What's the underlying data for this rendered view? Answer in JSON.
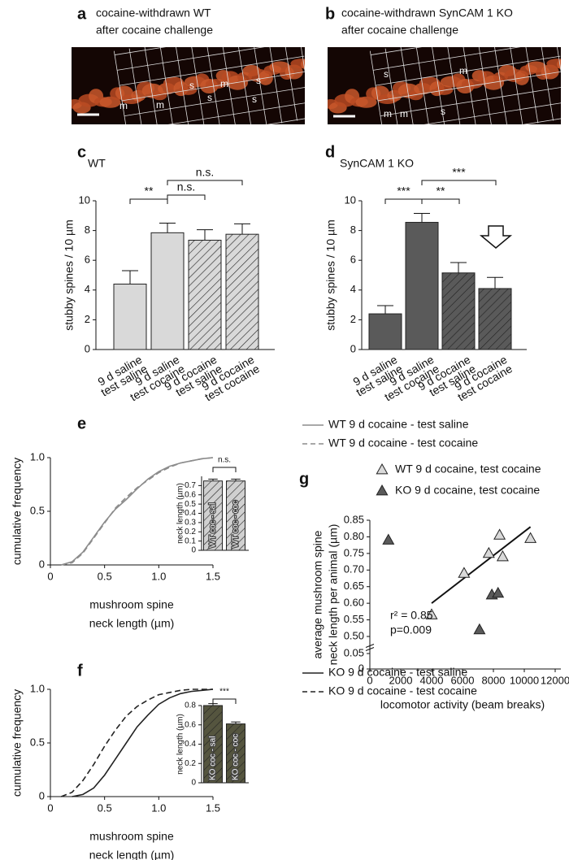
{
  "images": [
    {
      "panel": "a",
      "title": [
        "cocaine-withdrawn WT",
        "after cocaine challenge"
      ],
      "labels": [
        "s",
        "m",
        "s",
        "s",
        "s",
        "m",
        "m"
      ]
    },
    {
      "panel": "b",
      "title": [
        "cocaine-withdrawn SynCAM 1 KO",
        "after cocaine challenge"
      ],
      "labels": [
        "s",
        "m",
        "m",
        "m",
        "s"
      ]
    }
  ],
  "chart_data": [
    {
      "type": "bar",
      "panel": "c",
      "subtitle": "WT",
      "ylabel": "stubby spines / 10 µm",
      "categories": [
        [
          "9 d saline",
          "test saline"
        ],
        [
          "9 d saline",
          "test cocaine"
        ],
        [
          "9 d cocaine",
          "test saline"
        ],
        [
          "9 d cocaine",
          "test cocaine"
        ]
      ],
      "values": [
        4.4,
        7.85,
        7.35,
        7.75
      ],
      "errors": [
        0.9,
        0.65,
        0.7,
        0.7
      ],
      "color": "#d9d9d9",
      "hatch": [
        false,
        false,
        true,
        true
      ],
      "ylim": [
        0,
        10
      ],
      "yticks": [
        0,
        2,
        4,
        6,
        8,
        10
      ],
      "annotations": [
        "**",
        "n.s.",
        "n.s."
      ]
    },
    {
      "type": "bar",
      "panel": "d",
      "subtitle": "SynCAM 1 KO",
      "ylabel": "stubby spines / 10 µm",
      "categories": [
        [
          "9 d saline",
          "test saline"
        ],
        [
          "9 d saline",
          "test cocaine"
        ],
        [
          "9 d cocaine",
          "test saline"
        ],
        [
          "9 d cocaine",
          "test cocaine"
        ]
      ],
      "values": [
        2.4,
        8.55,
        5.15,
        4.1
      ],
      "errors": [
        0.55,
        0.6,
        0.7,
        0.75
      ],
      "color": "#5a5a5a",
      "hatch": [
        false,
        false,
        true,
        true
      ],
      "ylim": [
        0,
        10
      ],
      "yticks": [
        0,
        2,
        4,
        6,
        8,
        10
      ],
      "annotations": [
        "***",
        "**",
        "***"
      ]
    },
    {
      "type": "line",
      "panel": "e",
      "ylabel": "cumulative frequency",
      "xlabel": [
        "mushroom spine",
        "neck length (µm)"
      ],
      "x": [
        0,
        0.1,
        0.2,
        0.3,
        0.4,
        0.5,
        0.6,
        0.7,
        0.8,
        0.9,
        1.0,
        1.1,
        1.2,
        1.3,
        1.4,
        1.5
      ],
      "series": [
        {
          "name": "WT 9 d cocaine - test saline",
          "color": "#8c8c8c",
          "dash": false,
          "values": [
            null,
            0,
            0.03,
            0.12,
            0.26,
            0.4,
            0.52,
            0.61,
            0.71,
            0.8,
            0.87,
            0.92,
            0.95,
            0.97,
            0.99,
            1.0
          ]
        },
        {
          "name": "WT 9 d cocaine - test cocaine",
          "color": "#8c8c8c",
          "dash": true,
          "values": [
            null,
            0,
            0.02,
            0.11,
            0.25,
            0.39,
            0.53,
            0.63,
            0.72,
            0.79,
            0.86,
            0.91,
            0.95,
            0.97,
            0.99,
            1.0
          ]
        }
      ],
      "xlim": [
        0,
        1.5
      ],
      "xticks": [
        0,
        0.5,
        {
          "value": 1,
          "label": "1.0"
        },
        1.5
      ],
      "ylim": [
        0,
        1
      ],
      "yticks": [
        0,
        0.5,
        {
          "value": 1,
          "label": "1.0"
        }
      ]
    },
    {
      "type": "bar",
      "ylabel": "neck length (µm)",
      "categories": [
        "WT coc - sal",
        "WT coc - coc"
      ],
      "values": [
        0.75,
        0.75
      ],
      "errors": [
        0.02,
        0.02
      ],
      "color": "#d0d0d0",
      "hatch": [
        true,
        true
      ],
      "ylim": [
        0,
        0.8
      ],
      "yticks": [
        0,
        0.1,
        0.2,
        0.3,
        0.4,
        0.5,
        0.6,
        0.7
      ],
      "annotations": [
        "n.s."
      ]
    },
    {
      "type": "line",
      "panel": "f",
      "ylabel": "cumulative frequency",
      "xlabel": [
        "mushroom spine",
        "neck length (µm)"
      ],
      "x": [
        0,
        0.1,
        0.2,
        0.3,
        0.4,
        0.5,
        0.6,
        0.7,
        0.8,
        0.9,
        1.0,
        1.1,
        1.2,
        1.3,
        1.4,
        1.5
      ],
      "series": [
        {
          "name": "KO 9 d cocaine - test saline",
          "color": "#222222",
          "dash": false,
          "values": [
            null,
            null,
            0,
            0.02,
            0.08,
            0.2,
            0.35,
            0.5,
            0.65,
            0.76,
            0.86,
            0.92,
            0.96,
            0.98,
            0.99,
            1.0
          ]
        },
        {
          "name": "KO 9 d cocaine - test cocaine",
          "color": "#222222",
          "dash": true,
          "values": [
            null,
            0,
            0.04,
            0.15,
            0.3,
            0.47,
            0.62,
            0.75,
            0.84,
            0.9,
            0.95,
            0.97,
            0.99,
            1.0,
            1.0,
            1.0
          ]
        }
      ],
      "xlim": [
        0,
        1.5
      ],
      "xticks": [
        0,
        0.5,
        {
          "value": 1,
          "label": "1.0"
        },
        1.5
      ],
      "ylim": [
        0,
        1
      ],
      "yticks": [
        0,
        0.5,
        {
          "value": 1,
          "label": "1.0"
        }
      ]
    },
    {
      "type": "bar",
      "ylabel": "neck length (µm)",
      "categories": [
        "KO coc - sal",
        "KO coc - coc"
      ],
      "values": [
        0.8,
        0.61
      ],
      "errors": [
        0.02,
        0.02
      ],
      "color": "#55553f",
      "hatch": [
        true,
        true
      ],
      "ylim": [
        0,
        0.8
      ],
      "yticks": [
        0,
        0.2,
        0.4,
        0.6,
        0.8
      ],
      "annotations": [
        "***"
      ]
    },
    {
      "type": "scatter",
      "panel": "g",
      "ylabel": [
        "average mushroom spine",
        "neck length per animal (µm)"
      ],
      "xlabel": "locomotor activity (beam breaks)",
      "series": [
        {
          "name": "WT 9 d cocaine, test cocaine",
          "color": "#d9d9d9",
          "x": [
            4000,
            6100,
            7700,
            8400,
            8600,
            10400
          ],
          "values": [
            0.565,
            0.69,
            0.75,
            0.805,
            0.74,
            0.795
          ]
        },
        {
          "name": "KO 9 d cocaine, test cocaine",
          "color": "#5a5a5a",
          "x": [
            1200,
            7100,
            7900,
            8300
          ],
          "values": [
            0.79,
            0.52,
            0.625,
            0.63
          ]
        }
      ],
      "fit": {
        "x": [
          4000,
          10400
        ],
        "y": [
          0.6,
          0.83
        ]
      },
      "annotations": [
        "r² = 0.85",
        "p=0.009"
      ],
      "xlim": [
        0,
        12000
      ],
      "xticks": [
        0,
        2000,
        4000,
        6000,
        8000,
        10000,
        12000
      ],
      "ylim": [
        0,
        0.85
      ],
      "y_break": [
        0.05,
        0.5
      ],
      "yticks": [
        0,
        0.05,
        {
          "value": 0.5,
          "label": "0.50"
        },
        0.55,
        {
          "value": 0.6,
          "label": "0.60"
        },
        0.65,
        {
          "value": 0.7,
          "label": "0.70"
        },
        0.75,
        {
          "value": 0.8,
          "label": "0.80"
        },
        0.85
      ]
    }
  ]
}
